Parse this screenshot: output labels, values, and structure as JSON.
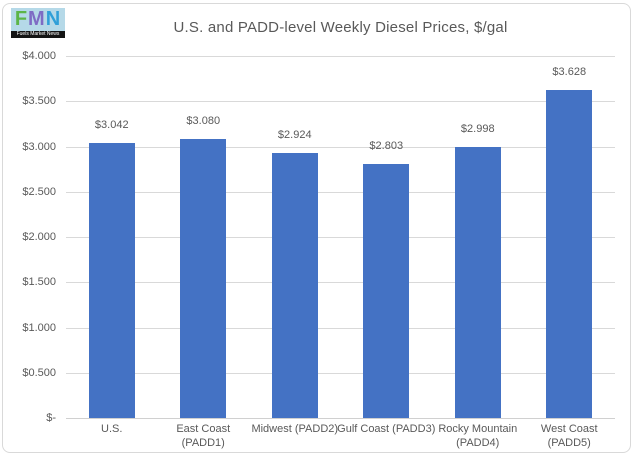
{
  "logo": {
    "letters": [
      {
        "char": "F",
        "color": "#5cb547"
      },
      {
        "char": "M",
        "color": "#7e6bc4"
      },
      {
        "char": "N",
        "color": "#2f9fd8"
      }
    ],
    "background": "#b5d9e8",
    "caption": "Fuels Market News"
  },
  "chart_data": {
    "type": "bar",
    "title": "U.S. and PADD-level Weekly Diesel Prices, $/gal",
    "categories": [
      "U.S.",
      "East Coast (PADD1)",
      "Midwest (PADD2)",
      "Gulf Coast (PADD3)",
      "Rocky Mountain (PADD4)",
      "West Coast (PADD5)"
    ],
    "values": [
      3.042,
      3.08,
      2.924,
      2.803,
      2.998,
      3.628
    ],
    "value_labels": [
      "$3.042",
      "$3.080",
      "$2.924",
      "$2.803",
      "$2.998",
      "$3.628"
    ],
    "y_ticks": [
      {
        "value": 4,
        "label": "$4.000"
      },
      {
        "value": 3.5,
        "label": "$3.500"
      },
      {
        "value": 3,
        "label": "$3.000"
      },
      {
        "value": 2.5,
        "label": "$2.500"
      },
      {
        "value": 2,
        "label": "$2.000"
      },
      {
        "value": 1.5,
        "label": "$1.500"
      },
      {
        "value": 1,
        "label": "$1.000"
      },
      {
        "value": 0.5,
        "label": "$0.500"
      },
      {
        "value": 0,
        "label": "$-"
      }
    ],
    "ylim": [
      0,
      4
    ],
    "xlabel": "",
    "ylabel": "",
    "grid": true,
    "legend": "none",
    "bar_color": "#4472C4",
    "gridline_color": "#D9D9D9",
    "axis_line_color": "#D0D0D0",
    "text_color": "#595959",
    "border_color": "#D9D9D9"
  }
}
